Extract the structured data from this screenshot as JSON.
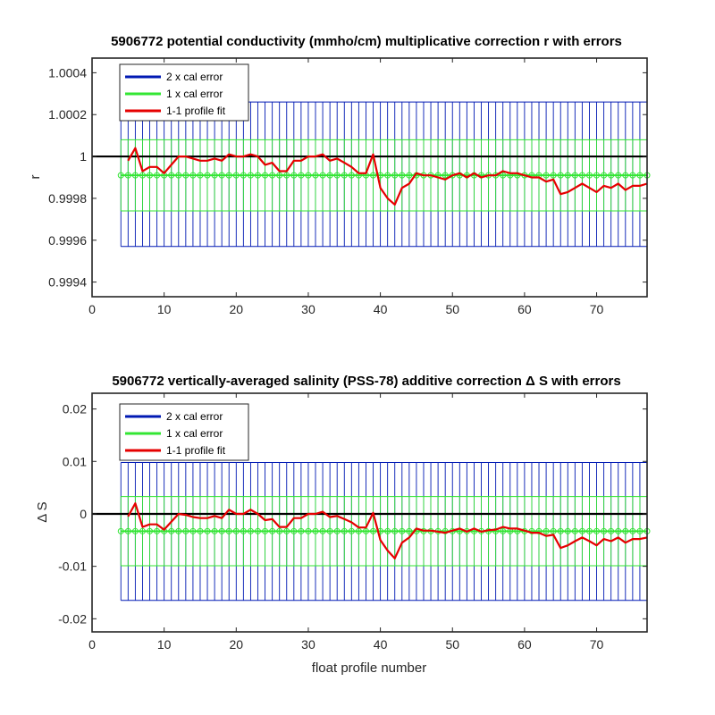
{
  "colors": {
    "two_x": "#0019b3",
    "one_x": "#33e633",
    "fit": "#e60000",
    "reference": "#000000",
    "mean": "#33e633"
  },
  "chart_data": [
    {
      "type": "line",
      "title": "5906772 potential conductivity (mmho/cm) multiplicative correction r with errors",
      "xlabel": "",
      "ylabel": "r",
      "xlim": [
        0,
        77
      ],
      "ylim": [
        0.99933,
        1.00047
      ],
      "xticks": [
        0,
        10,
        20,
        30,
        40,
        50,
        60,
        70
      ],
      "xtick_labels": [
        "0",
        "10",
        "20",
        "30",
        "40",
        "50",
        "60",
        "70"
      ],
      "yticks": [
        0.9994,
        0.9996,
        0.9998,
        1.0,
        1.0002,
        1.0004
      ],
      "ytick_labels": [
        "0.9994",
        "0.9996",
        "0.9998",
        "1",
        "1.0002",
        "1.0004"
      ],
      "legend_position": "top-left",
      "legend": [
        "2 x cal error",
        "1 x cal error",
        "1-1 profile fit"
      ],
      "reference_line": 1.0,
      "calibration_mean": 0.99991,
      "band_2x": [
        0.99957,
        1.00026
      ],
      "band_1x": [
        0.99974,
        1.00008
      ],
      "error_bar_x_range": [
        4,
        77
      ],
      "series": [
        {
          "name": "1-1 profile fit",
          "x": [
            5,
            6,
            7,
            8,
            9,
            10,
            11,
            12,
            13,
            14,
            15,
            16,
            17,
            18,
            19,
            20,
            21,
            22,
            23,
            24,
            25,
            26,
            27,
            28,
            29,
            30,
            31,
            32,
            33,
            34,
            35,
            36,
            37,
            38,
            39,
            40,
            41,
            42,
            43,
            44,
            45,
            46,
            47,
            48,
            49,
            50,
            51,
            52,
            53,
            54,
            55,
            56,
            57,
            58,
            59,
            60,
            61,
            62,
            63,
            64,
            65,
            66,
            67,
            68,
            69,
            70,
            71,
            72,
            73,
            74,
            75,
            76,
            77
          ],
          "y": [
            0.99998,
            1.00004,
            0.99993,
            0.99995,
            0.99995,
            0.99992,
            0.99996,
            1.0,
            1.0,
            0.99999,
            0.99998,
            0.99998,
            0.99999,
            0.99998,
            1.00001,
            1.0,
            1.0,
            1.00001,
            1.0,
            0.99996,
            0.99997,
            0.99993,
            0.99993,
            0.99998,
            0.99998,
            1.0,
            1.0,
            1.00001,
            0.99998,
            0.99999,
            0.99997,
            0.99995,
            0.99992,
            0.99992,
            1.00001,
            0.99985,
            0.9998,
            0.99977,
            0.99985,
            0.99987,
            0.99992,
            0.99991,
            0.99991,
            0.9999,
            0.99989,
            0.99991,
            0.99992,
            0.9999,
            0.99992,
            0.9999,
            0.99991,
            0.99991,
            0.99993,
            0.99992,
            0.99992,
            0.99991,
            0.9999,
            0.9999,
            0.99988,
            0.99989,
            0.99982,
            0.99983,
            0.99985,
            0.99987,
            0.99985,
            0.99983,
            0.99986,
            0.99985,
            0.99987,
            0.99984,
            0.99986,
            0.99986,
            0.99987
          ]
        }
      ]
    },
    {
      "type": "line",
      "title": "5906772 vertically-averaged salinity (PSS-78) additive correction Δ S with errors",
      "xlabel": "float profile number",
      "ylabel": "Δ S",
      "xlim": [
        0,
        77
      ],
      "ylim": [
        -0.0225,
        0.023
      ],
      "xticks": [
        0,
        10,
        20,
        30,
        40,
        50,
        60,
        70
      ],
      "xtick_labels": [
        "0",
        "10",
        "20",
        "30",
        "40",
        "50",
        "60",
        "70"
      ],
      "yticks": [
        -0.02,
        -0.01,
        0,
        0.01,
        0.02
      ],
      "ytick_labels": [
        "-0.02",
        "-0.01",
        "0",
        "0.01",
        "0.02"
      ],
      "legend_position": "top-left",
      "legend": [
        "2 x cal error",
        "1 x cal error",
        "1-1 profile fit"
      ],
      "reference_line": 0,
      "calibration_mean": -0.0033,
      "band_2x": [
        -0.0165,
        0.0098
      ],
      "band_1x": [
        -0.0099,
        0.0033
      ],
      "error_bar_x_range": [
        4,
        77
      ],
      "series": [
        {
          "name": "1-1 profile fit",
          "x": [
            5,
            6,
            7,
            8,
            9,
            10,
            11,
            12,
            13,
            14,
            15,
            16,
            17,
            18,
            19,
            20,
            21,
            22,
            23,
            24,
            25,
            26,
            27,
            28,
            29,
            30,
            31,
            32,
            33,
            34,
            35,
            36,
            37,
            38,
            39,
            40,
            41,
            42,
            43,
            44,
            45,
            46,
            47,
            48,
            49,
            50,
            51,
            52,
            53,
            54,
            55,
            56,
            57,
            58,
            59,
            60,
            61,
            62,
            63,
            64,
            65,
            66,
            67,
            68,
            69,
            70,
            71,
            72,
            73,
            74,
            75,
            76,
            77
          ],
          "y": [
            -0.0005,
            0.002,
            -0.0025,
            -0.002,
            -0.002,
            -0.003,
            -0.0015,
            0.0,
            -0.0002,
            -0.0006,
            -0.0008,
            -0.0008,
            -0.0004,
            -0.0008,
            0.0008,
            0.0,
            0.0,
            0.0008,
            0.0,
            -0.0012,
            -0.001,
            -0.0025,
            -0.0025,
            -0.0008,
            -0.0008,
            0.0,
            0.0,
            0.0004,
            -0.0006,
            -0.0004,
            -0.001,
            -0.0016,
            -0.0026,
            -0.0026,
            0.0002,
            -0.005,
            -0.007,
            -0.0085,
            -0.0055,
            -0.0045,
            -0.0028,
            -0.0032,
            -0.0032,
            -0.0034,
            -0.0036,
            -0.0032,
            -0.0028,
            -0.0034,
            -0.0028,
            -0.0034,
            -0.0031,
            -0.003,
            -0.0025,
            -0.0028,
            -0.0028,
            -0.0032,
            -0.0036,
            -0.0036,
            -0.0042,
            -0.004,
            -0.0065,
            -0.006,
            -0.0052,
            -0.0045,
            -0.0052,
            -0.006,
            -0.0048,
            -0.0052,
            -0.0045,
            -0.0055,
            -0.0048,
            -0.0048,
            -0.0045
          ]
        }
      ]
    }
  ]
}
